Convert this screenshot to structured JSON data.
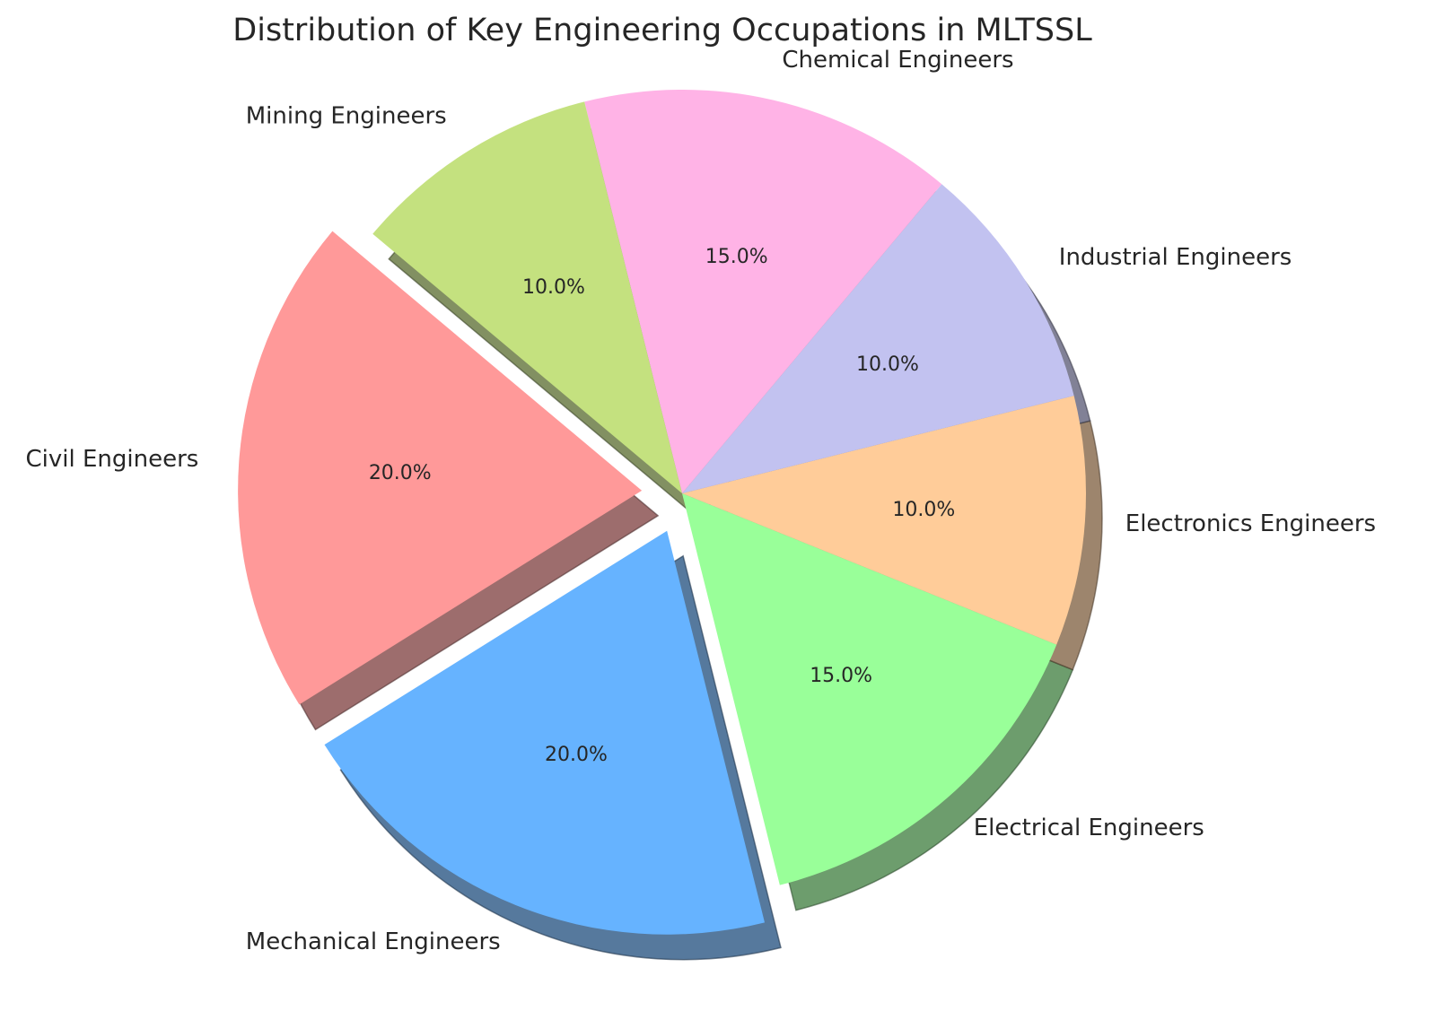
{
  "chart_data": {
    "type": "pie",
    "title": "Distribution of Key Engineering Occupations in MLTSSL",
    "slices": [
      {
        "label": "Civil Engineers",
        "value": 20.0,
        "pct_label": "20.0%",
        "color": "#ff9999",
        "exploded": true
      },
      {
        "label": "Mechanical Engineers",
        "value": 20.0,
        "pct_label": "20.0%",
        "color": "#66b3ff",
        "exploded": true
      },
      {
        "label": "Electrical Engineers",
        "value": 15.0,
        "pct_label": "15.0%",
        "color": "#99ff99",
        "exploded": false
      },
      {
        "label": "Electronics Engineers",
        "value": 10.0,
        "pct_label": "10.0%",
        "color": "#ffcc99",
        "exploded": false
      },
      {
        "label": "Industrial Engineers",
        "value": 10.0,
        "pct_label": "10.0%",
        "color": "#c2c2f0",
        "exploded": false
      },
      {
        "label": "Chemical Engineers",
        "value": 15.0,
        "pct_label": "15.0%",
        "color": "#ffb3e6",
        "exploded": false
      },
      {
        "label": "Mining Engineers",
        "value": 10.0,
        "pct_label": "10.0%",
        "color": "#c4e17f",
        "exploded": false
      }
    ],
    "start_angle_deg": 140,
    "direction": "counterclockwise",
    "shadow": true
  }
}
